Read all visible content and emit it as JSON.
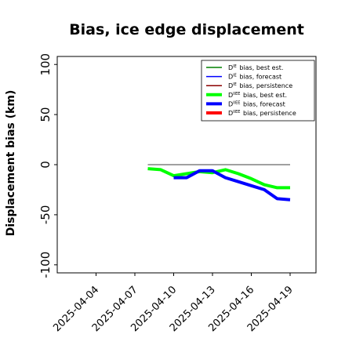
{
  "chart_data": {
    "type": "line",
    "title": "Bias, ice edge displacement",
    "ylabel": "Displacement bias (km)",
    "xlabel": "",
    "ylim": [
      -108,
      108
    ],
    "xlim": [
      "2025-04-01",
      "2025-04-21"
    ],
    "yticks": [
      -100,
      -50,
      0,
      50,
      100
    ],
    "xticks": [
      "2025-04-04",
      "2025-04-07",
      "2025-04-10",
      "2025-04-13",
      "2025-04-16",
      "2025-04-19"
    ],
    "highlighted_xtick": "2025-04-10",
    "highlight_color": "#228B22",
    "grid": false,
    "legend_position": "top-right",
    "series": [
      {
        "name": "D^IE bias, best est.",
        "color": "#008000",
        "width": 1,
        "x": [],
        "y": []
      },
      {
        "name": "D^IE bias, forecast",
        "color": "#0000ff",
        "width": 1,
        "x": [],
        "y": []
      },
      {
        "name": "D^IE bias, persistence",
        "color": "#8b0000",
        "width": 1,
        "x": [],
        "y": []
      },
      {
        "name": "D^IIEE bias, best est.",
        "color": "#00ff00",
        "width": 3,
        "x": [
          "2025-04-08",
          "2025-04-09",
          "2025-04-10",
          "2025-04-11",
          "2025-04-12",
          "2025-04-13",
          "2025-04-14",
          "2025-04-15",
          "2025-04-16",
          "2025-04-17",
          "2025-04-18",
          "2025-04-19"
        ],
        "y": [
          -4,
          -5,
          -11,
          -9,
          -7,
          -8,
          -5,
          -9,
          -14,
          -20,
          -23,
          -23
        ]
      },
      {
        "name": "D^IIEE bias, forecast",
        "color": "#0000ff",
        "width": 3,
        "x": [
          "2025-04-10",
          "2025-04-11",
          "2025-04-12",
          "2025-04-13",
          "2025-04-14",
          "2025-04-15",
          "2025-04-16",
          "2025-04-17",
          "2025-04-18",
          "2025-04-19"
        ],
        "y": [
          -13,
          -13,
          -6,
          -6,
          -13,
          -17,
          -21,
          -25,
          -34,
          -35
        ]
      },
      {
        "name": "D^IIEE bias, persistence",
        "color": "#ff0000",
        "width": 3,
        "x": [],
        "y": []
      }
    ],
    "reference_line": {
      "y": 0,
      "x": [
        "2025-04-08",
        "2025-04-19"
      ],
      "color": "#808080"
    }
  }
}
